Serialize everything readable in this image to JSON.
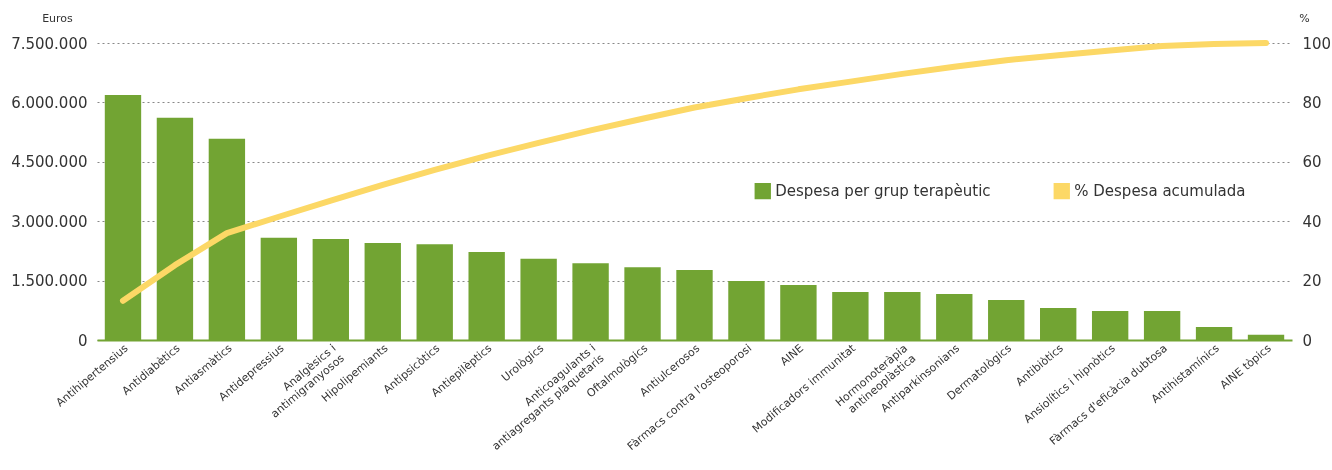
{
  "chart_data": {
    "type": "bar",
    "categories": [
      "Antihipertensius",
      "Antidiabètics",
      "Antiasmàtics",
      "Antidepressius",
      "Analgèsics i\nantimigranyosos",
      "Hipolipemiants",
      "Antipsicòtics",
      "Antiepilèptics",
      "Urològics",
      "Anticoagulants i\nantiagregants plaquetaris",
      "Oftalmològics",
      "Antiulcerosos",
      "Fàrmacs contra l'osteoporosi",
      "AINE",
      "Modificadors immunitat",
      "Hormonoteràpia\nantineoplàstica",
      "Antiparkinsonians",
      "Dermatològics",
      "Antibiòtics",
      "Ansiolítics i hipnòtics",
      "Fàrmacs d'eficàcia dubtosa",
      "Antihistamínics",
      "AINE tòpics"
    ],
    "series": [
      {
        "name": "Despesa per grup terapèutic",
        "color": "#72a433",
        "values": [
          6190000,
          5610000,
          5080000,
          2580000,
          2550000,
          2450000,
          2420000,
          2220000,
          2050000,
          1940000,
          1840000,
          1770000,
          1490000,
          1390000,
          1210000,
          1210000,
          1160000,
          1010000,
          810000,
          730000,
          730000,
          330000,
          130000
        ]
      },
      {
        "name": "% Despesa acumulada",
        "type": "line",
        "axis": "y2",
        "color": "#fcd866",
        "values": [
          13.2,
          25.2,
          36.0,
          41.5,
          46.9,
          52.2,
          57.3,
          62.0,
          66.4,
          70.6,
          74.5,
          78.3,
          81.4,
          84.4,
          87.0,
          89.6,
          92.0,
          94.2,
          95.9,
          97.5,
          99.0,
          99.7,
          100
        ]
      }
    ],
    "ylabel": "Euros",
    "y2label": "%",
    "ylim": [
      0,
      7500000
    ],
    "yticks": [
      0,
      {
        "value": 1500000,
        "label": "1.500.000"
      },
      {
        "value": 3000000,
        "label": "3.000.000"
      },
      {
        "value": 4500000,
        "label": "4.500.000"
      },
      {
        "value": 6000000,
        "label": "6.000.000"
      },
      {
        "value": 7500000,
        "label": "7.500.000"
      }
    ],
    "y2lim": [
      0,
      100
    ],
    "y2ticks": [
      0,
      20,
      40,
      60,
      80,
      100
    ],
    "grid": "y",
    "legend": "right",
    "marker": "none",
    "line_style": "solid"
  }
}
